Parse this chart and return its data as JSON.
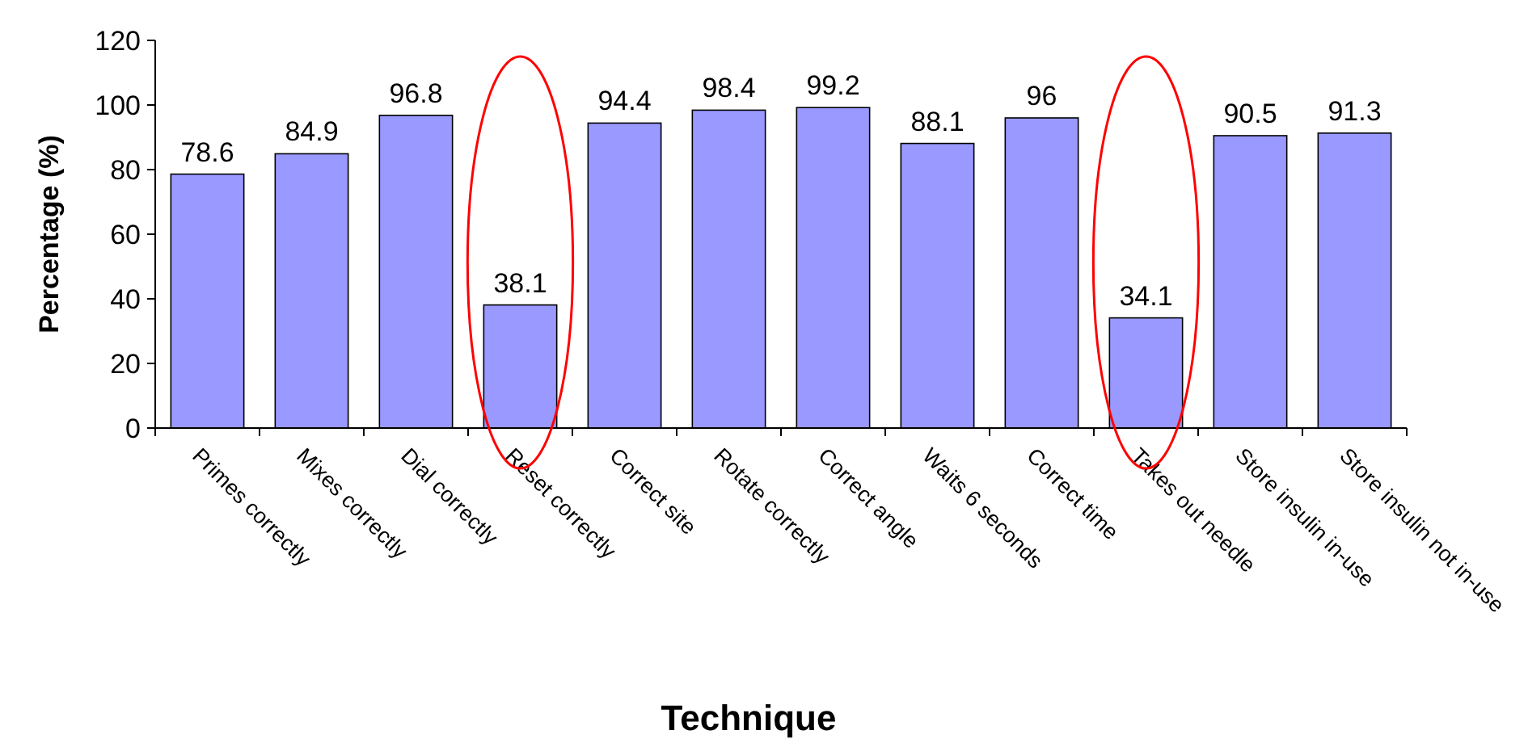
{
  "chart_data": {
    "type": "bar",
    "xlabel": "Technique",
    "ylabel": "Percentage (%)",
    "categories": [
      "Primes correctly",
      "Mixes correctly",
      "Dial correctly",
      "Reset correctly",
      "Correct site",
      "Rotate correctly",
      "Correct angle",
      "Waits 6 seconds",
      "Correct time",
      "Takes out needle",
      "Store insulin in-use",
      "Store insulin not in-use"
    ],
    "values": [
      78.6,
      84.9,
      96.8,
      38.1,
      94.4,
      98.4,
      99.2,
      88.1,
      96,
      34.1,
      90.5,
      91.3
    ],
    "color": "#9999ff",
    "ylim": [
      0,
      120
    ],
    "yticks": [
      0,
      20,
      40,
      60,
      80,
      100,
      120
    ],
    "data_labels": true
  }
}
